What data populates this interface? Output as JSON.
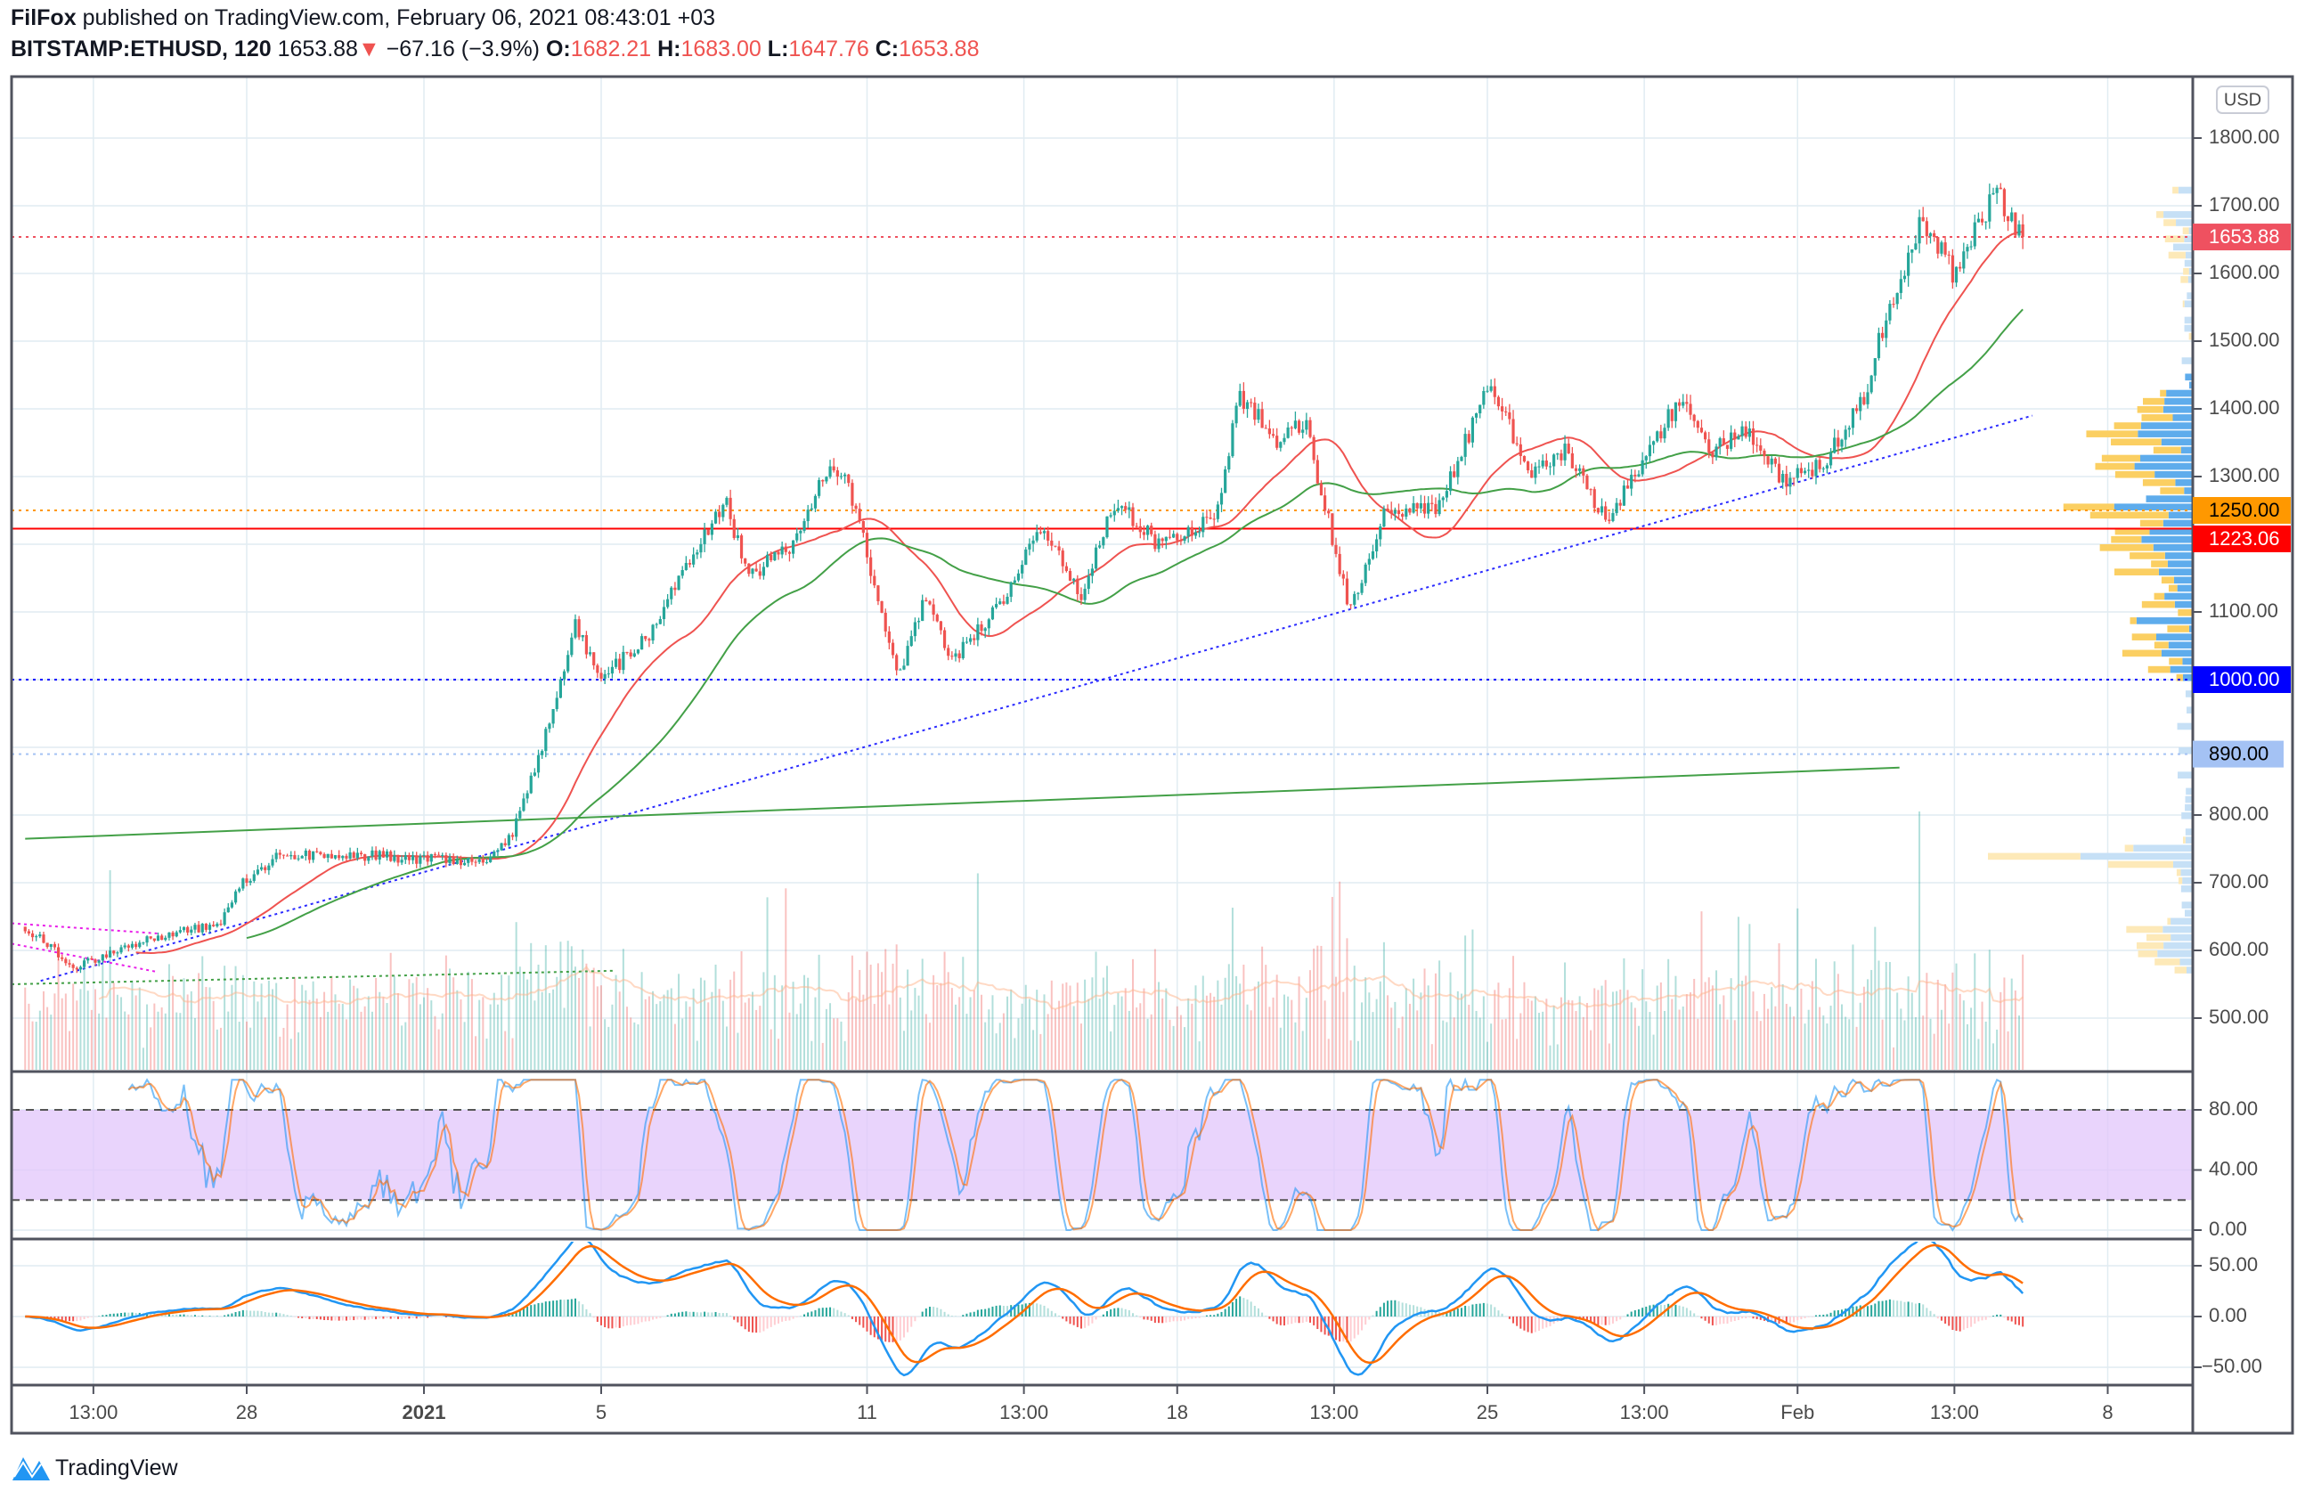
{
  "header": {
    "author": "FilFox",
    "published_text": "published on TradingView.com, February 06, 2021 08:43:01 +03",
    "symbol": "BITSTAMP:ETHUSD, 120",
    "last": "1653.88",
    "change": "−67.16 (−3.9%)",
    "o_label": "O:",
    "o": "1682.21",
    "h_label": "H:",
    "h": "1683.00",
    "l_label": "L:",
    "l": "1647.76",
    "c_label": "C:",
    "c": "1653.88"
  },
  "footer": {
    "brand": "TradingView"
  },
  "colors": {
    "up": "#26a69a",
    "down": "#ef5350",
    "ma_fast": "#ef5350",
    "ma_slow": "#43a047",
    "rsi_k": "#2196f3",
    "rsi_d": "#ff6d00",
    "macd": "#2196f3",
    "signal": "#ff6d00",
    "rsi_band": "#e1c6fb"
  },
  "chart_data": {
    "type": "candlestick",
    "title": "BITSTAMP:ETHUSD, 120",
    "currency_label": "USD",
    "x_ticks": [
      {
        "day": 1.54,
        "label": "13:00"
      },
      {
        "day": 5,
        "label": "28"
      },
      {
        "day": 9,
        "label": "2021"
      },
      {
        "day": 13,
        "label": "5"
      },
      {
        "day": 19,
        "label": "11"
      },
      {
        "day": 22.54,
        "label": "13:00"
      },
      {
        "day": 26,
        "label": "18"
      },
      {
        "day": 29.54,
        "label": "13:00"
      },
      {
        "day": 33,
        "label": "25"
      },
      {
        "day": 36.54,
        "label": "13:00"
      },
      {
        "day": 40,
        "label": "Feb"
      },
      {
        "day": 43.54,
        "label": "13:00"
      },
      {
        "day": 47,
        "label": "8"
      }
    ],
    "x_unit": "days since Dec 23, 2020",
    "y_ticks": [
      500,
      600,
      700,
      800,
      900,
      1000,
      1100,
      1200,
      1300,
      1400,
      1500,
      1600,
      1700,
      1800
    ],
    "y_range": [
      430,
      1880
    ],
    "price_path_anchors": [
      [
        0,
        635
      ],
      [
        1.1,
        575
      ],
      [
        2.7,
        615
      ],
      [
        4.4,
        640
      ],
      [
        4.9,
        700
      ],
      [
        5.7,
        740
      ],
      [
        7.7,
        740
      ],
      [
        10.4,
        730
      ],
      [
        11,
        770
      ],
      [
        11.9,
        950
      ],
      [
        12.4,
        1080
      ],
      [
        13,
        1000
      ],
      [
        14,
        1060
      ],
      [
        15,
        1170
      ],
      [
        15.8,
        1270
      ],
      [
        16.3,
        1150
      ],
      [
        17.3,
        1200
      ],
      [
        18.2,
        1330
      ],
      [
        18.8,
        1250
      ],
      [
        19.3,
        1100
      ],
      [
        19.7,
        1000
      ],
      [
        20.3,
        1120
      ],
      [
        20.9,
        1030
      ],
      [
        21.9,
        1100
      ],
      [
        23,
        1230
      ],
      [
        23.8,
        1120
      ],
      [
        24.6,
        1260
      ],
      [
        25.6,
        1200
      ],
      [
        26.9,
        1240
      ],
      [
        27.4,
        1420
      ],
      [
        28.3,
        1350
      ],
      [
        28.9,
        1380
      ],
      [
        29.6,
        1180
      ],
      [
        29.9,
        1100
      ],
      [
        30.7,
        1250
      ],
      [
        31.9,
        1250
      ],
      [
        32.5,
        1350
      ],
      [
        33.1,
        1440
      ],
      [
        33.9,
        1300
      ],
      [
        34.8,
        1340
      ],
      [
        35.7,
        1230
      ],
      [
        36.5,
        1320
      ],
      [
        37.4,
        1420
      ],
      [
        38,
        1340
      ],
      [
        38.8,
        1370
      ],
      [
        39.7,
        1290
      ],
      [
        40.6,
        1320
      ],
      [
        41.5,
        1420
      ],
      [
        42,
        1540
      ],
      [
        42.8,
        1680
      ],
      [
        43.5,
        1600
      ],
      [
        44.5,
        1720
      ],
      [
        45.1,
        1654
      ]
    ],
    "price_badges": [
      {
        "value": "1653.88",
        "price": 1653.88,
        "bg": "#ef5160",
        "fg": "#ffffff",
        "line": "dotted"
      },
      {
        "value": "1250.00",
        "price": 1250,
        "bg": "#ff9800",
        "fg": "#000000",
        "line": "dotted"
      },
      {
        "value": "1223.06",
        "price": 1223.06,
        "bg": "#ff0000",
        "fg": "#ffffff",
        "line": "solid"
      },
      {
        "value": "1000.00",
        "price": 1000,
        "bg": "#0000ff",
        "fg": "#ffffff",
        "line": "dotted"
      },
      {
        "value": "890.00",
        "price": 890,
        "bg": "#a4c2f4",
        "fg": "#000000",
        "line": "dotted"
      }
    ],
    "trendlines": [
      {
        "name": "support-trendline",
        "from": [
          0.35,
          555
        ],
        "to": [
          45.3,
          1390
        ],
        "color": "#2a2aff",
        "style": "dotted"
      },
      {
        "name": "long-trendline",
        "from": [
          0,
          765
        ],
        "to": [
          42.3,
          870
        ],
        "color": "#43a047",
        "style": "solid"
      }
    ],
    "rsi": {
      "ticks": [
        0,
        40,
        80
      ],
      "tick_labels": [
        "0.00",
        "40.00",
        "80.00"
      ],
      "upper": 80,
      "lower": 20
    },
    "macd": {
      "ticks": [
        -50,
        0,
        50
      ],
      "tick_labels": [
        "−50.00",
        "0.00",
        "50.00"
      ]
    }
  }
}
